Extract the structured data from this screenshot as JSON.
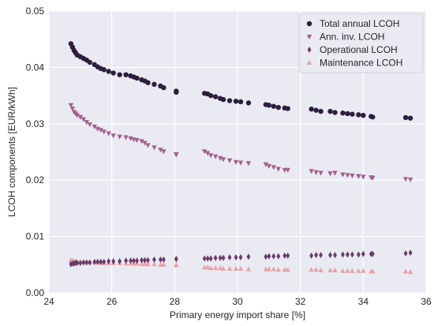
{
  "chart_data": {
    "type": "scatter",
    "xlabel": "Primary energy import share [%]",
    "ylabel": "LCOH components [EUR/kWh]",
    "xlim": [
      24,
      36
    ],
    "ylim": [
      0,
      0.05
    ],
    "xticks": [
      24,
      26,
      28,
      30,
      32,
      34,
      36
    ],
    "yticks": [
      0.0,
      0.01,
      0.02,
      0.03,
      0.04,
      0.05
    ],
    "xtick_labels": [
      "24",
      "26",
      "28",
      "30",
      "32",
      "34",
      "36"
    ],
    "ytick_labels": [
      "0.00",
      "0.01",
      "0.02",
      "0.03",
      "0.04",
      "0.05"
    ],
    "grid": true,
    "legend_position": "top-right",
    "background": "#EAEAF2",
    "x": [
      24.7,
      24.75,
      24.8,
      24.85,
      24.9,
      25.0,
      25.1,
      25.2,
      25.3,
      25.45,
      25.55,
      25.65,
      25.75,
      25.9,
      26.05,
      26.25,
      26.45,
      26.6,
      26.7,
      26.8,
      26.95,
      27.05,
      27.15,
      27.35,
      27.55,
      27.65,
      28.05,
      28.05,
      28.95,
      29.05,
      29.15,
      29.3,
      29.45,
      29.55,
      29.75,
      29.95,
      30.1,
      30.35,
      30.9,
      31.0,
      31.15,
      31.3,
      31.5,
      31.6,
      32.35,
      32.5,
      32.65,
      32.95,
      33.1,
      33.35,
      33.5,
      33.65,
      33.85,
      34.0,
      34.25,
      34.3,
      35.35,
      35.5
    ],
    "series": [
      {
        "name": "Total annual LCOH",
        "marker": "circle",
        "color": "#2D1E3E",
        "values": [
          0.0442,
          0.0436,
          0.043,
          0.0426,
          0.0422,
          0.0419,
          0.0416,
          0.0413,
          0.0409,
          0.0405,
          0.0401,
          0.0398,
          0.0396,
          0.0393,
          0.039,
          0.0387,
          0.0387,
          0.0385,
          0.0383,
          0.0381,
          0.0378,
          0.0376,
          0.0373,
          0.037,
          0.0367,
          0.0364,
          0.0358,
          0.0356,
          0.0354,
          0.0353,
          0.035,
          0.0348,
          0.0345,
          0.0343,
          0.0341,
          0.034,
          0.0339,
          0.0337,
          0.0334,
          0.0333,
          0.0331,
          0.0329,
          0.0328,
          0.0327,
          0.0326,
          0.0324,
          0.0322,
          0.0322,
          0.032,
          0.0319,
          0.0318,
          0.0317,
          0.0316,
          0.0315,
          0.0313,
          0.0312,
          0.0311,
          0.031
        ]
      },
      {
        "name": "Ann. inv. LCOH",
        "marker": "triangle-down",
        "color": "#A3608E",
        "values": [
          0.0333,
          0.0327,
          0.0321,
          0.0318,
          0.0315,
          0.0312,
          0.0308,
          0.0303,
          0.0299,
          0.0295,
          0.0291,
          0.0289,
          0.0286,
          0.0283,
          0.0279,
          0.0277,
          0.0276,
          0.0274,
          0.0272,
          0.0271,
          0.0269,
          0.0266,
          0.0262,
          0.0258,
          0.0254,
          0.0251,
          0.0246,
          0.0245,
          0.0251,
          0.0248,
          0.0244,
          0.0242,
          0.0239,
          0.0237,
          0.0235,
          0.0232,
          0.0231,
          0.023,
          0.0228,
          0.0225,
          0.0223,
          0.022,
          0.0218,
          0.0218,
          0.0216,
          0.0214,
          0.0213,
          0.0212,
          0.0213,
          0.021,
          0.0209,
          0.0208,
          0.0207,
          0.0206,
          0.0205,
          0.0204,
          0.0202,
          0.0201
        ]
      },
      {
        "name": "Operational LCOH",
        "marker": "diamond",
        "color": "#6B3A6B",
        "values": [
          0.0051,
          0.0052,
          0.0052,
          0.0053,
          0.0053,
          0.0053,
          0.0054,
          0.0054,
          0.0054,
          0.0055,
          0.0055,
          0.0055,
          0.0055,
          0.0056,
          0.0056,
          0.0056,
          0.0057,
          0.0057,
          0.0057,
          0.0057,
          0.0058,
          0.0058,
          0.0058,
          0.0059,
          0.0059,
          0.0059,
          0.006,
          0.006,
          0.0061,
          0.0061,
          0.0061,
          0.0062,
          0.0062,
          0.0062,
          0.0063,
          0.0063,
          0.0063,
          0.0064,
          0.0064,
          0.0065,
          0.0065,
          0.0065,
          0.0066,
          0.0066,
          0.0066,
          0.0067,
          0.0067,
          0.0067,
          0.0067,
          0.0068,
          0.0068,
          0.0068,
          0.0068,
          0.0069,
          0.0069,
          0.0069,
          0.007,
          0.0071
        ]
      },
      {
        "name": "Maintenance LCOH",
        "marker": "triangle-up",
        "color": "#E8A3A8",
        "values": [
          0.0058,
          0.0057,
          0.0056,
          0.0056,
          0.0055,
          0.0055,
          0.0055,
          0.0054,
          0.0054,
          0.0054,
          0.0054,
          0.0053,
          0.0053,
          0.0053,
          0.0053,
          0.0053,
          0.0052,
          0.0052,
          0.0052,
          0.0052,
          0.0051,
          0.0051,
          0.0051,
          0.0051,
          0.005,
          0.005,
          0.005,
          0.0049,
          0.0045,
          0.0045,
          0.0044,
          0.0044,
          0.0044,
          0.0043,
          0.0043,
          0.0043,
          0.0043,
          0.0042,
          0.0042,
          0.0042,
          0.0042,
          0.0041,
          0.0041,
          0.0041,
          0.0041,
          0.0041,
          0.004,
          0.004,
          0.004,
          0.0039,
          0.0039,
          0.0039,
          0.0039,
          0.0039,
          0.0038,
          0.0038,
          0.0038,
          0.0037
        ]
      }
    ]
  }
}
